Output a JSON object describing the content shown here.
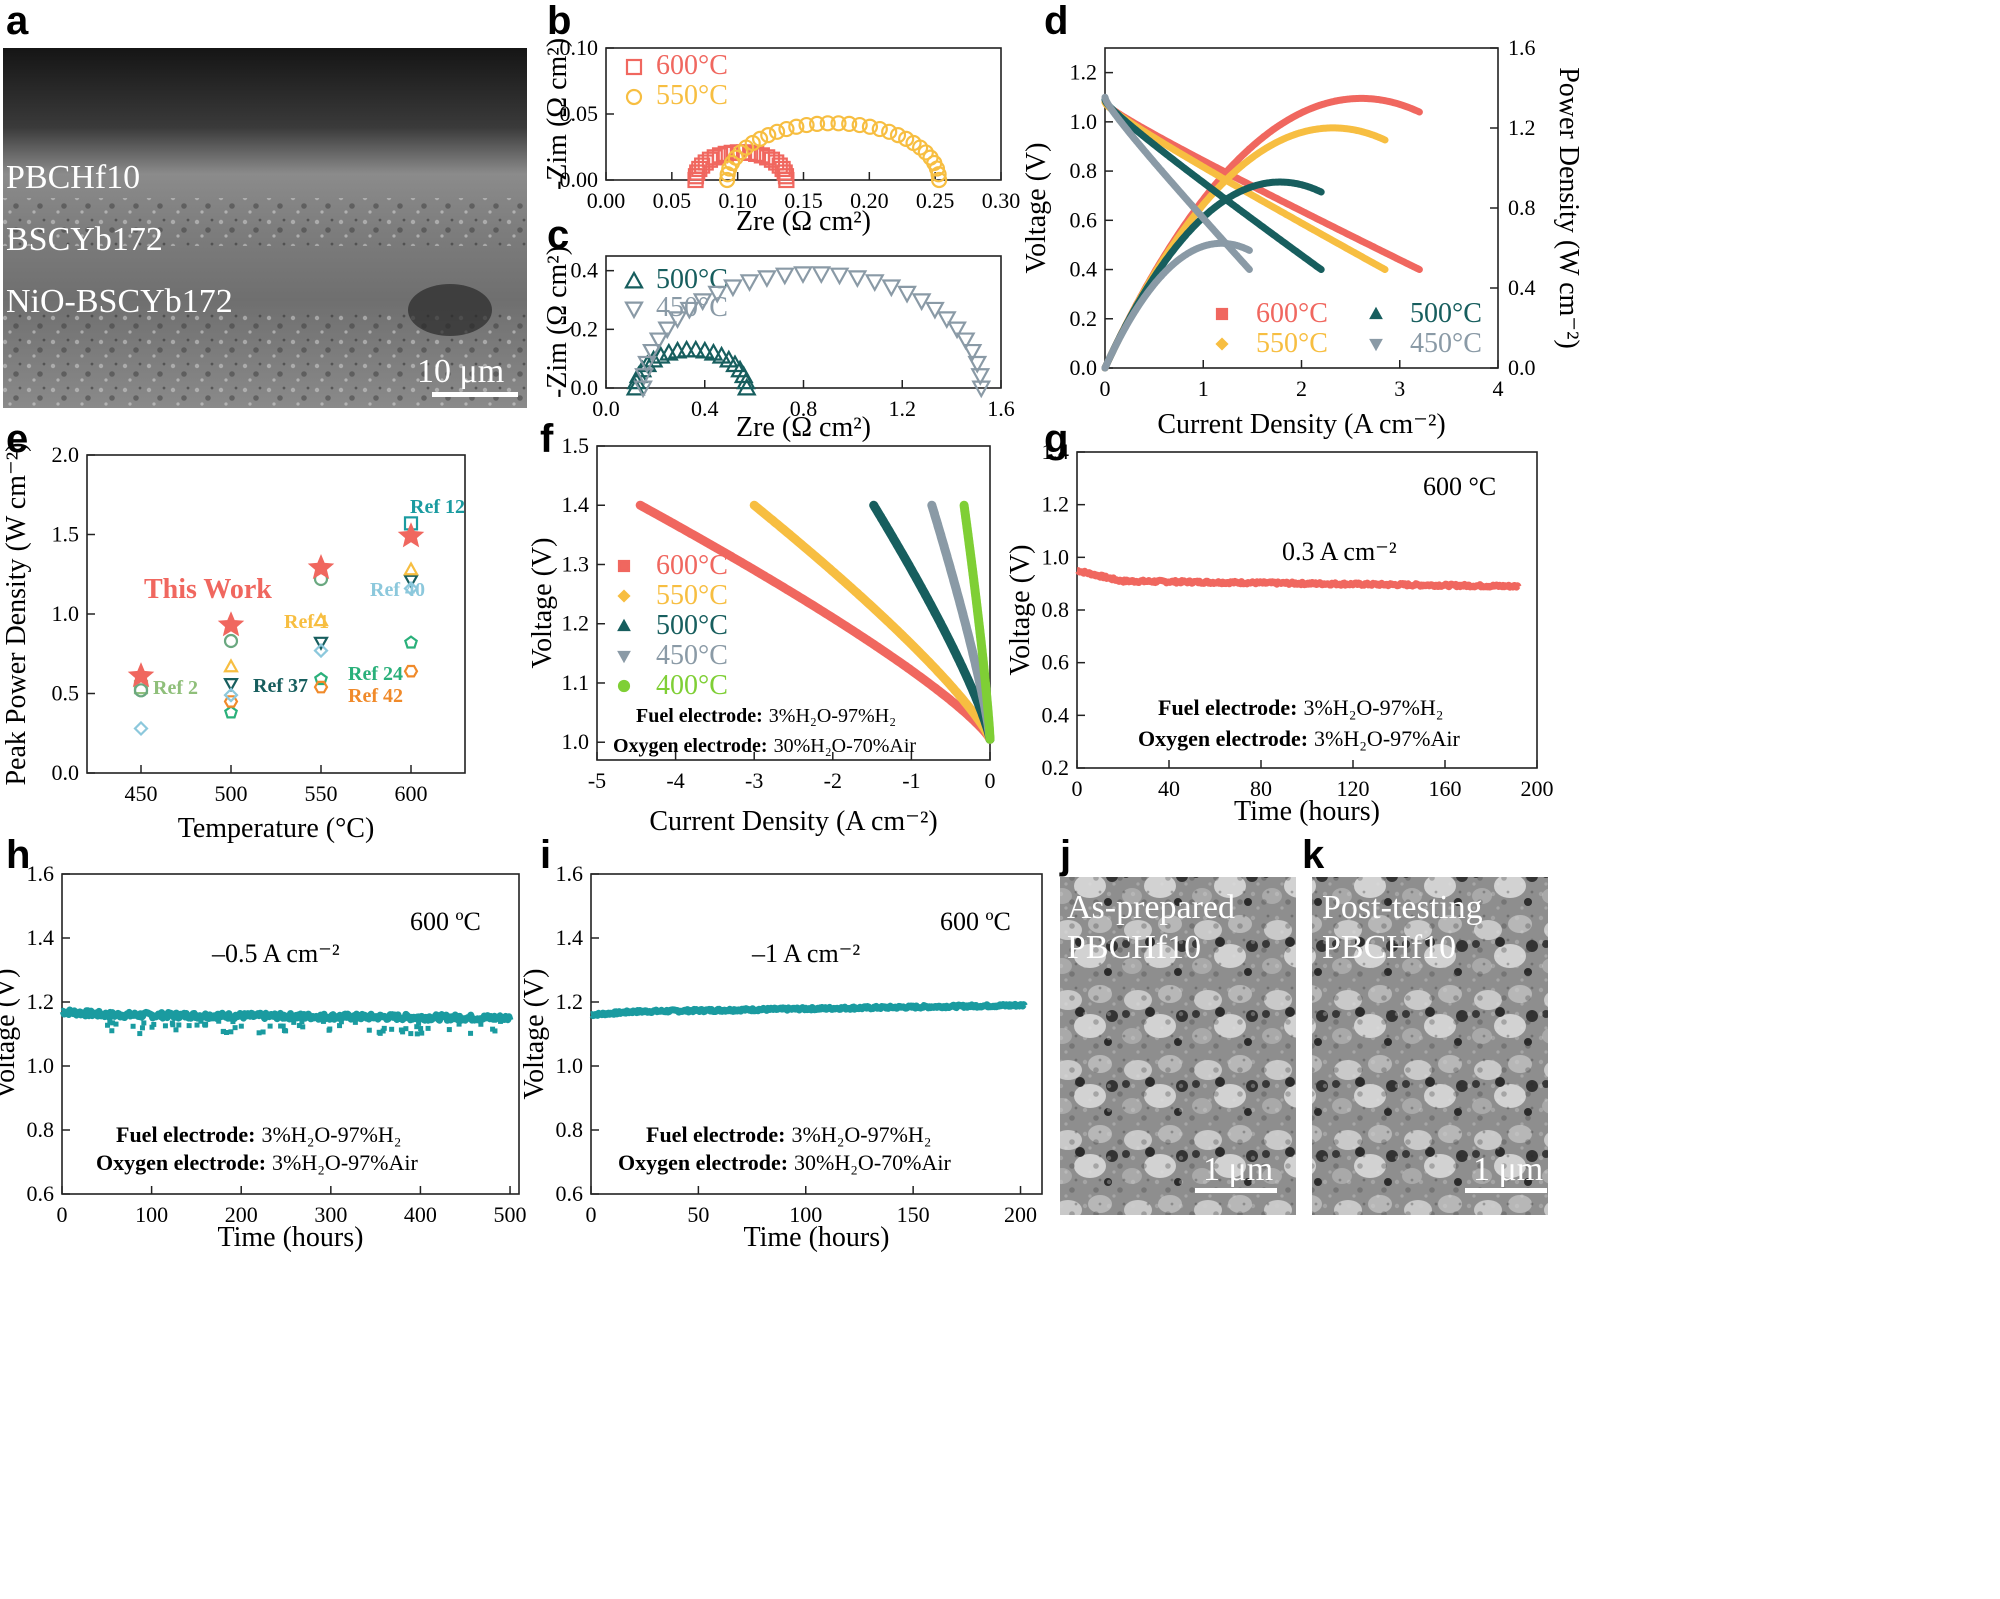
{
  "panels": [
    {
      "id": "a",
      "label": "a"
    },
    {
      "id": "b",
      "label": "b"
    },
    {
      "id": "c",
      "label": "c"
    },
    {
      "id": "d",
      "label": "d"
    },
    {
      "id": "e",
      "label": "e"
    },
    {
      "id": "f",
      "label": "f"
    },
    {
      "id": "g",
      "label": "g"
    },
    {
      "id": "h",
      "label": "h"
    },
    {
      "id": "i",
      "label": "i"
    },
    {
      "id": "j",
      "label": "j"
    },
    {
      "id": "k",
      "label": "k"
    }
  ],
  "sem": {
    "a": {
      "layers": [
        "PBCHf10",
        "BSCYb172",
        "NiO-BSCYb172"
      ],
      "scale": "10 μm"
    },
    "j": {
      "lines": [
        "As-prepared",
        "PBCHf10"
      ],
      "scale": "1 μm"
    },
    "k": {
      "lines": [
        "Post-testing",
        "PBCHf10"
      ],
      "scale": "1 μm"
    }
  },
  "colors": {
    "600": "#f0675f",
    "550": "#f7be41",
    "500": "#175e5e",
    "450": "#8a9aa6",
    "400": "#7fcf35",
    "stab": "#1a9ba0"
  },
  "chart_data": [
    {
      "id": "b",
      "type": "scatter",
      "xlabel": "Zre (Ω cm²)",
      "ylabel": "-Zim (Ω cm²)",
      "xlim": [
        0,
        0.3
      ],
      "ylim": [
        0,
        0.1
      ],
      "xticks": [
        "0.00",
        "0.05",
        "0.10",
        "0.15",
        "0.20",
        "0.25",
        "0.30"
      ],
      "yticks": [
        "0.00",
        "0.05",
        "0.10"
      ],
      "series": [
        {
          "name": "600°C",
          "marker": "square",
          "color": "#f0675f",
          "r0": 0.068,
          "r1": 0.137,
          "peak": 0.021,
          "n": 24
        },
        {
          "name": "550°C",
          "marker": "circle",
          "color": "#f7be41",
          "r0": 0.092,
          "r1": 0.253,
          "peak": 0.043,
          "n": 32
        }
      ]
    },
    {
      "id": "c",
      "type": "scatter",
      "xlabel": "Zre (Ω cm²)",
      "ylabel": "-Zim (Ω cm²)",
      "xlim": [
        0,
        1.6
      ],
      "ylim": [
        0,
        0.45
      ],
      "xticks": [
        "0.0",
        "0.4",
        "0.8",
        "1.2",
        "1.6"
      ],
      "yticks": [
        "0.0",
        "0.2",
        "0.4"
      ],
      "series": [
        {
          "name": "500°C",
          "marker": "triangle",
          "color": "#175e5e",
          "r0": 0.12,
          "r1": 0.57,
          "peak": 0.13,
          "n": 20
        },
        {
          "name": "450°C",
          "marker": "triangle-down",
          "color": "#8a9aa6",
          "r0": 0.15,
          "r1": 1.52,
          "peak": 0.39,
          "n": 30
        }
      ]
    },
    {
      "id": "d",
      "type": "line",
      "xlabel": "Current Density (A cm⁻²)",
      "ylabel": "Voltage (V)",
      "y2label": "Power Density (W cm⁻²)",
      "xlim": [
        0,
        4
      ],
      "ylim": [
        0,
        1.3
      ],
      "y2lim": [
        0,
        1.6
      ],
      "xticks": [
        "0",
        "1",
        "2",
        "3",
        "4"
      ],
      "yticks": [
        "0.0",
        "0.2",
        "0.4",
        "0.6",
        "0.8",
        "1.0",
        "1.2"
      ],
      "y2ticks": [
        "0.0",
        "0.4",
        "0.8",
        "1.2",
        "1.6"
      ],
      "series": [
        {
          "name": "600°C",
          "color": "#f0675f",
          "marker": "square",
          "ocv": 1.08,
          "imax": 3.2,
          "vend": 0.4
        },
        {
          "name": "550°C",
          "color": "#f7be41",
          "marker": "diamond",
          "ocv": 1.08,
          "imax": 2.85,
          "vend": 0.4
        },
        {
          "name": "500°C",
          "color": "#175e5e",
          "marker": "triangle",
          "ocv": 1.09,
          "imax": 2.2,
          "vend": 0.4
        },
        {
          "name": "450°C",
          "color": "#8a9aa6",
          "marker": "triangle-down",
          "ocv": 1.1,
          "imax": 1.47,
          "vend": 0.4
        }
      ]
    },
    {
      "id": "e",
      "type": "scatter",
      "xlabel": "Temperature (°C)",
      "ylabel": "Peak Power Density (W cm⁻²)",
      "xlim": [
        420,
        630
      ],
      "ylim": [
        0,
        2.0
      ],
      "xticks": [
        "450",
        "500",
        "550",
        "600"
      ],
      "yticks": [
        "0.0",
        "0.5",
        "1.0",
        "1.5",
        "2.0"
      ],
      "this_work": {
        "label": "This Work",
        "color": "#f0675f",
        "points": [
          [
            450,
            0.61
          ],
          [
            500,
            0.93
          ],
          [
            550,
            1.29
          ],
          [
            600,
            1.49
          ]
        ]
      },
      "refs": [
        {
          "name": "Ref 2",
          "color": "#8fbf7a",
          "marker": "square",
          "points": [
            [
              450,
              0.54
            ]
          ]
        },
        {
          "name": "Ref 37",
          "color": "#175e5e",
          "marker": "triangle-down",
          "points": [
            [
              500,
              0.56
            ],
            [
              550,
              0.82
            ],
            [
              600,
              1.21
            ]
          ]
        },
        {
          "name": "Ref 1",
          "color": "#f7be41",
          "marker": "triangle",
          "points": [
            [
              500,
              0.67
            ],
            [
              550,
              0.96
            ],
            [
              600,
              1.28
            ]
          ]
        },
        {
          "name": "Ref 24",
          "color": "#2ab07a",
          "marker": "pentagon",
          "points": [
            [
              500,
              0.38
            ],
            [
              550,
              0.59
            ],
            [
              600,
              0.82
            ]
          ]
        },
        {
          "name": "Ref 42",
          "color": "#f08a2a",
          "marker": "hexagon",
          "points": [
            [
              500,
              0.45
            ],
            [
              550,
              0.54
            ],
            [
              600,
              0.64
            ]
          ]
        },
        {
          "name": "Ref 40",
          "color": "#8cc8dc",
          "marker": "diamond",
          "points": [
            [
              450,
              0.28
            ],
            [
              500,
              0.49
            ],
            [
              550,
              0.77
            ],
            [
              600,
              1.16
            ]
          ]
        },
        {
          "name": "Ref 12",
          "color": "#1a9ba0",
          "marker": "square",
          "points": [
            [
              600,
              1.57
            ]
          ]
        },
        {
          "name": "",
          "color": "#6aa880",
          "marker": "circle",
          "points": [
            [
              450,
              0.52
            ],
            [
              500,
              0.83
            ],
            [
              550,
              1.22
            ]
          ]
        }
      ]
    },
    {
      "id": "f",
      "type": "line",
      "xlabel": "Current Density (A cm⁻²)",
      "ylabel": "Voltage (V)",
      "xlim": [
        -5,
        0
      ],
      "ylim": [
        0.97,
        1.5
      ],
      "xticks": [
        "-5",
        "-4",
        "-3",
        "-2",
        "-1",
        "0"
      ],
      "yticks": [
        "1.0",
        "1.1",
        "1.2",
        "1.3",
        "1.4",
        "1.5"
      ],
      "series": [
        {
          "name": "600°C",
          "color": "#f0675f",
          "marker": "square",
          "imin": -4.45
        },
        {
          "name": "550°C",
          "color": "#f7be41",
          "marker": "diamond",
          "imin": -3.0
        },
        {
          "name": "500°C",
          "color": "#175e5e",
          "marker": "triangle",
          "imin": -1.48
        },
        {
          "name": "450°C",
          "color": "#8a9aa6",
          "marker": "triangle-down",
          "imin": -0.74
        },
        {
          "name": "400°C",
          "color": "#7fcf35",
          "marker": "circle",
          "imin": -0.33
        }
      ],
      "note_fuel_bold": "Fuel electrode:",
      "note_fuel": "3%H₂O-97%H₂",
      "note_oxy_bold": "Oxygen electrode:",
      "note_oxy": "30%H₂O-70%Air"
    },
    {
      "id": "g",
      "type": "line",
      "xlabel": "Time (hours)",
      "ylabel": "Voltage (V)",
      "xlim": [
        0,
        200
      ],
      "ylim": [
        0.2,
        1.4
      ],
      "xticks": [
        "0",
        "40",
        "80",
        "120",
        "160",
        "200"
      ],
      "yticks": [
        "0.2",
        "0.4",
        "0.6",
        "0.8",
        "1.0",
        "1.2",
        "1.4"
      ],
      "temp": "600 °C",
      "current": "0.3 A cm⁻²",
      "series": [
        {
          "name": "stability",
          "color": "#f0675f",
          "tend": 192,
          "v_start": 0.95,
          "v_mid": 0.91,
          "v_end": 0.89
        }
      ],
      "note_fuel_bold": "Fuel electrode:",
      "note_fuel": "3%H₂O-97%H₂",
      "note_oxy_bold": "Oxygen electrode:",
      "note_oxy": "3%H₂O-97%Air"
    },
    {
      "id": "h",
      "type": "line",
      "xlabel": "Time (hours)",
      "ylabel": "Voltage (V)",
      "xlim": [
        0,
        510
      ],
      "ylim": [
        0.6,
        1.6
      ],
      "xticks": [
        "0",
        "100",
        "200",
        "300",
        "400",
        "500"
      ],
      "yticks": [
        "0.6",
        "0.8",
        "1.0",
        "1.2",
        "1.4",
        "1.6"
      ],
      "temp": "600 ºC",
      "current": "–0.5 A cm⁻²",
      "series": [
        {
          "name": "stability",
          "color": "#1a9ba0",
          "tend": 500,
          "v_start": 1.17,
          "v_mid": 1.16,
          "v_end": 1.15
        }
      ],
      "note_fuel_bold": "Fuel electrode:",
      "note_fuel": "3%H₂O-97%H₂",
      "note_oxy_bold": "Oxygen electrode:",
      "note_oxy": "3%H₂O-97%Air"
    },
    {
      "id": "i",
      "type": "line",
      "xlabel": "Time (hours)",
      "ylabel": "Voltage (V)",
      "xlim": [
        0,
        210
      ],
      "ylim": [
        0.6,
        1.6
      ],
      "xticks": [
        "0",
        "50",
        "100",
        "150",
        "200"
      ],
      "yticks": [
        "0.6",
        "0.8",
        "1.0",
        "1.2",
        "1.4",
        "1.6"
      ],
      "temp": "600 ºC",
      "current": "–1 A cm⁻²",
      "series": [
        {
          "name": "stability",
          "color": "#1a9ba0",
          "tend": 202,
          "v_start": 1.16,
          "v_mid": 1.17,
          "v_end": 1.19
        }
      ],
      "note_fuel_bold": "Fuel electrode:",
      "note_fuel": "3%H₂O-97%H₂",
      "note_oxy_bold": "Oxygen electrode:",
      "note_oxy": "30%H₂O-70%Air"
    }
  ]
}
